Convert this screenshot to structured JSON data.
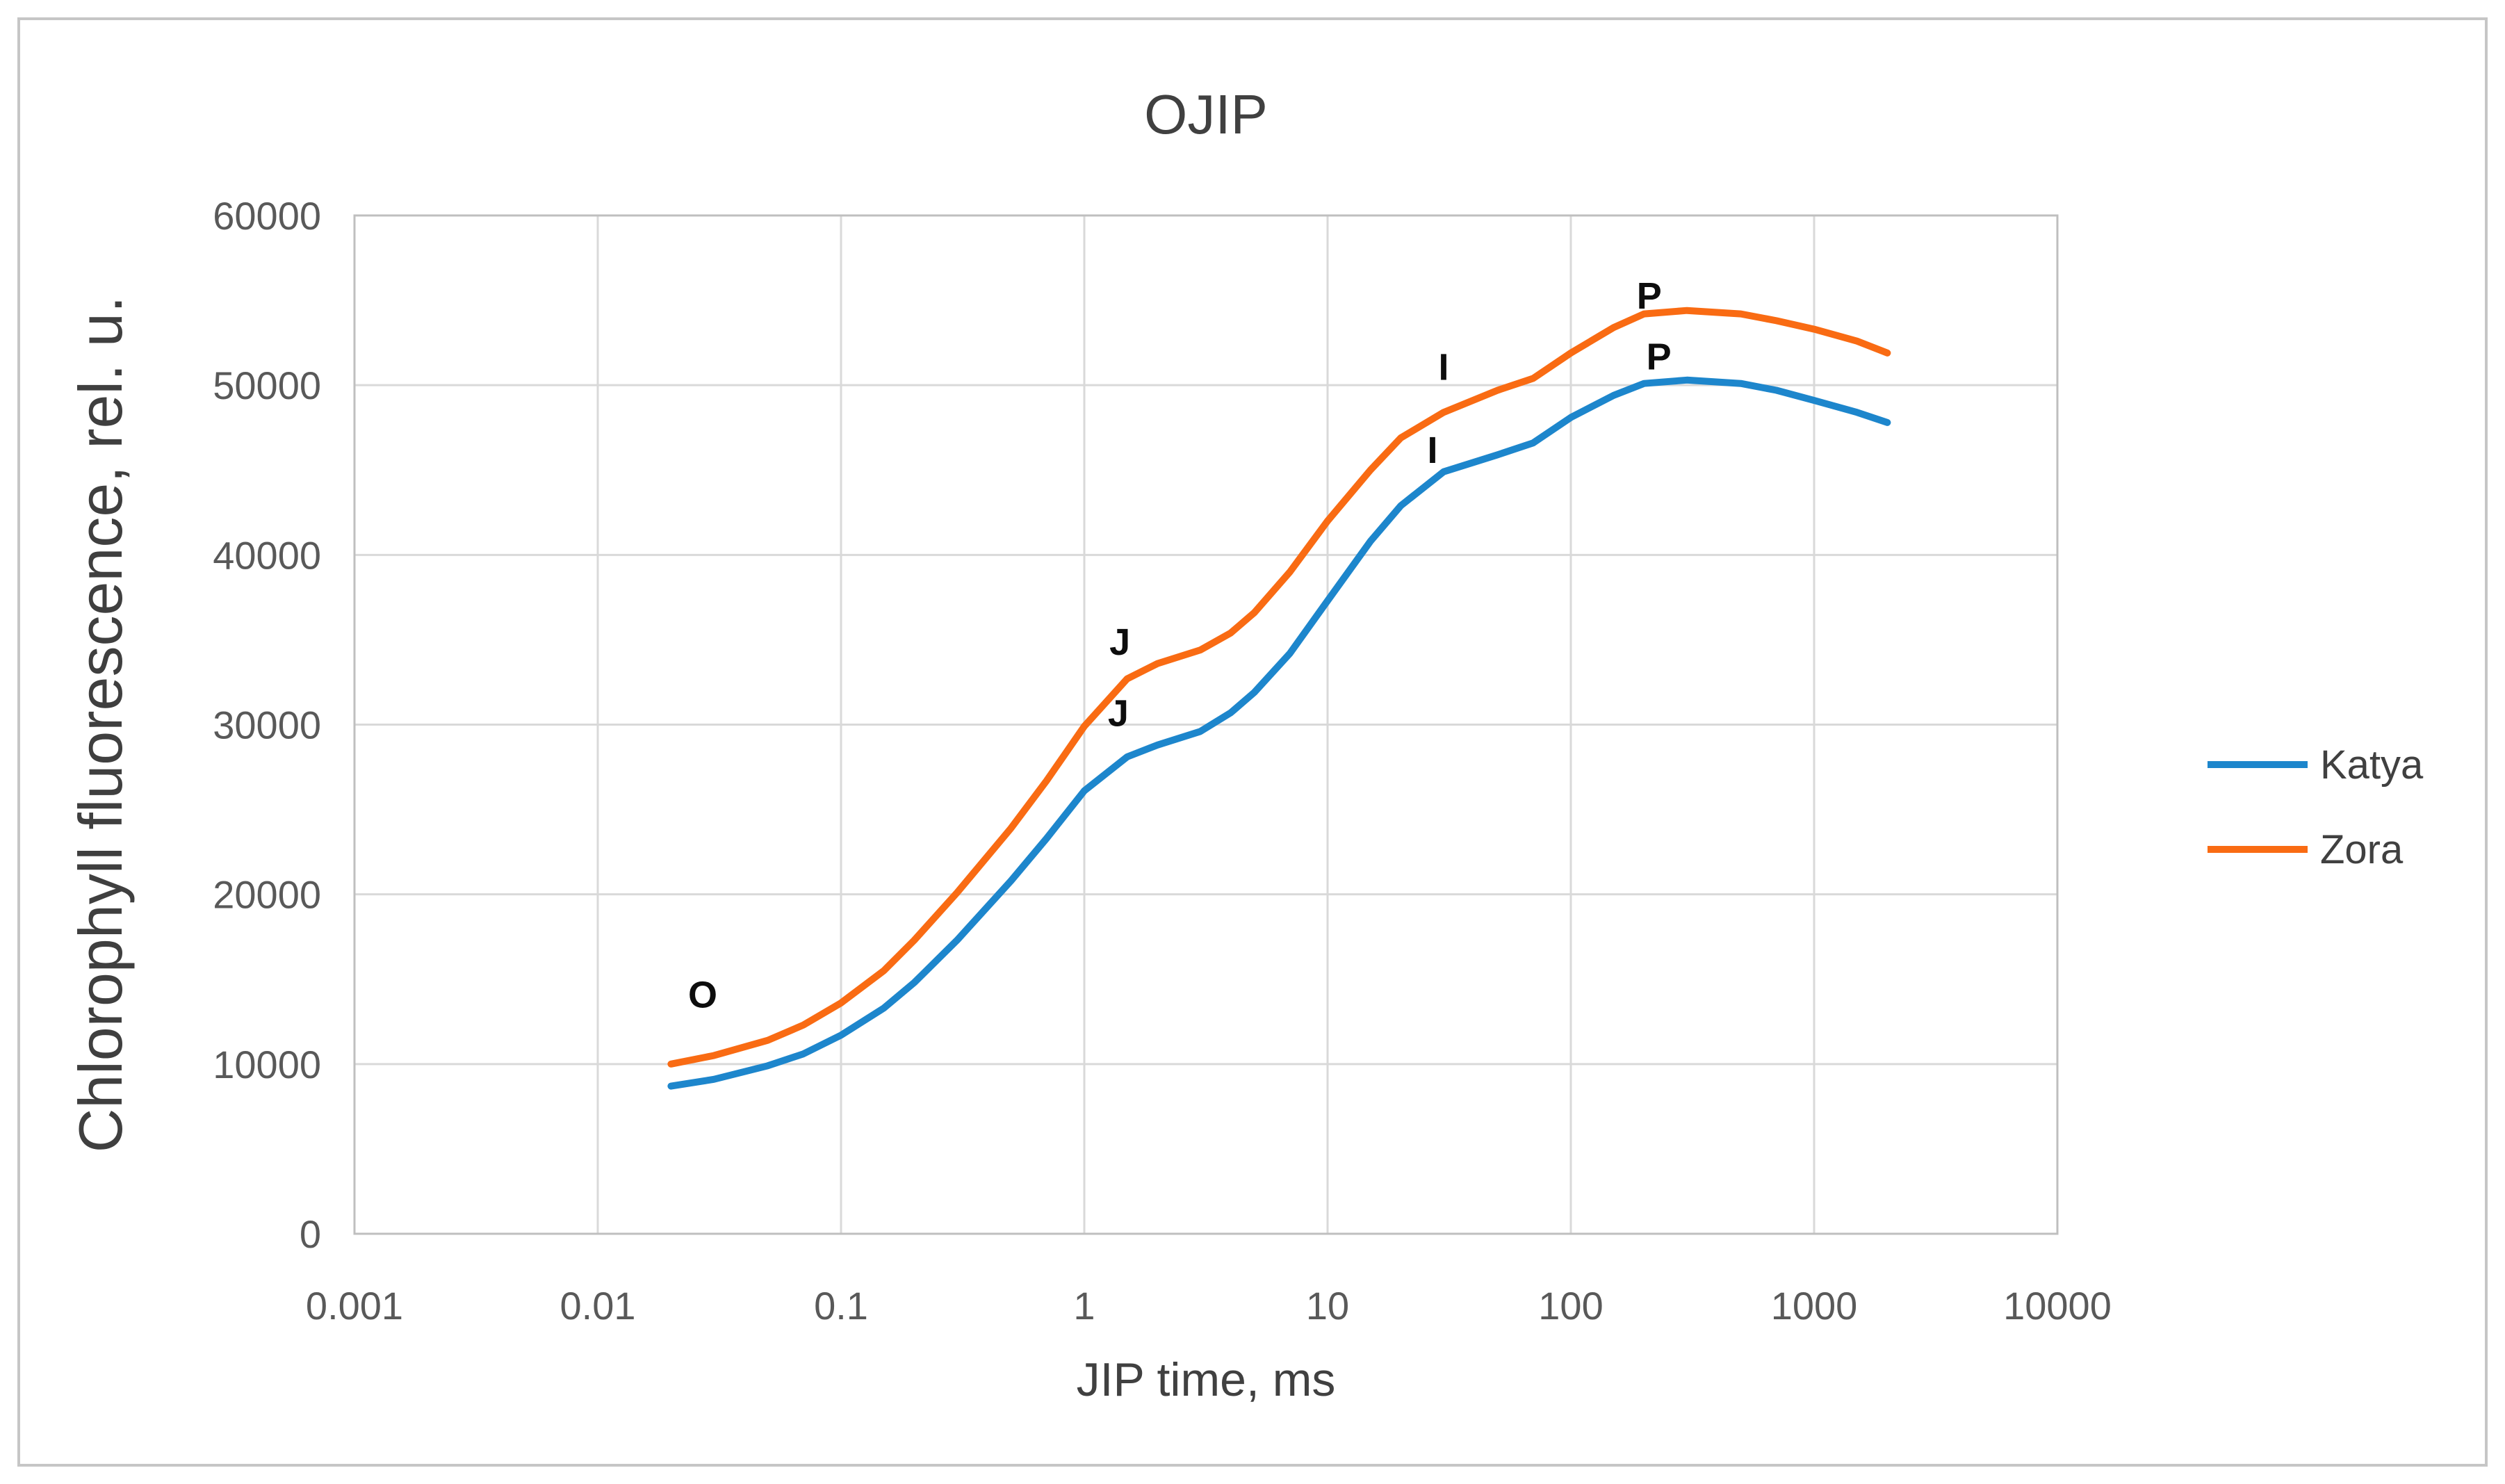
{
  "chart_data": {
    "type": "line",
    "title": "OJIP",
    "xlabel": "JIP time, ms",
    "ylabel": "Chlorophyll fluorescence, rel. u.",
    "x_scale": "log",
    "xlim": [
      0.001,
      10000
    ],
    "ylim": [
      0,
      60000
    ],
    "grid": true,
    "legend_position": "right",
    "x_ticks": [
      {
        "value": 0.001,
        "label": "0.001"
      },
      {
        "value": 0.01,
        "label": "0.01"
      },
      {
        "value": 0.1,
        "label": "0.1"
      },
      {
        "value": 1,
        "label": "1"
      },
      {
        "value": 10,
        "label": "10"
      },
      {
        "value": 100,
        "label": "100"
      },
      {
        "value": 1000,
        "label": "1000"
      },
      {
        "value": 10000,
        "label": "10000"
      }
    ],
    "y_ticks": [
      {
        "value": 0,
        "label": "0"
      },
      {
        "value": 10000,
        "label": "10000"
      },
      {
        "value": 20000,
        "label": "20000"
      },
      {
        "value": 30000,
        "label": "30000"
      },
      {
        "value": 40000,
        "label": "40000"
      },
      {
        "value": 50000,
        "label": "50000"
      },
      {
        "value": 60000,
        "label": "60000"
      }
    ],
    "x": [
      0.02,
      0.03,
      0.05,
      0.07,
      0.1,
      0.15,
      0.2,
      0.3,
      0.5,
      0.7,
      1,
      1.5,
      2,
      3,
      4,
      5,
      7,
      10,
      15,
      20,
      30,
      50,
      70,
      100,
      150,
      200,
      300,
      500,
      700,
      1000,
      1500,
      2000
    ],
    "series": [
      {
        "name": "Katya",
        "color": "#1d86cc",
        "values": [
          8700,
          9100,
          9900,
          10600,
          11700,
          13300,
          14800,
          17300,
          20800,
          23300,
          26100,
          28100,
          28800,
          29600,
          30700,
          31900,
          34200,
          37300,
          40800,
          42900,
          44900,
          45900,
          46600,
          48100,
          49400,
          50100,
          50300,
          50100,
          49700,
          49100,
          48400,
          47800
        ]
      },
      {
        "name": "Zora",
        "color": "#f96b13",
        "values": [
          10000,
          10500,
          11400,
          12300,
          13600,
          15500,
          17300,
          20100,
          23900,
          26700,
          29900,
          32700,
          33600,
          34400,
          35400,
          36600,
          39000,
          42000,
          45000,
          46900,
          48400,
          49700,
          50400,
          51900,
          53400,
          54200,
          54400,
          54200,
          53800,
          53300,
          52600,
          51900
        ]
      }
    ],
    "annotations": [
      {
        "text": "O",
        "t": 0.027,
        "v": 14100
      },
      {
        "text": "J",
        "t": 1.4,
        "v": 34900
      },
      {
        "text": "J",
        "t": 1.38,
        "v": 30700
      },
      {
        "text": "I",
        "t": 30,
        "v": 51100
      },
      {
        "text": "I",
        "t": 27,
        "v": 46200
      },
      {
        "text": "P",
        "t": 210,
        "v": 55300
      },
      {
        "text": "P",
        "t": 230,
        "v": 51700
      }
    ]
  }
}
